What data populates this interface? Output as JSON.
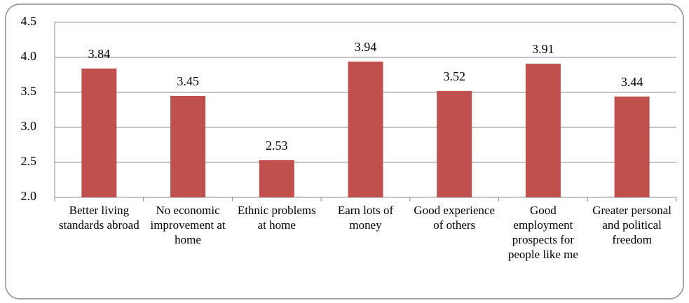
{
  "chart_data": {
    "type": "bar",
    "categories": [
      "Better living standards abroad",
      "No economic improvement at home",
      "Ethnic problems at home",
      "Earn lots of money",
      "Good experience of others",
      "Good employment prospects for people like me",
      "Greater personal and political freedom"
    ],
    "values": [
      3.84,
      3.45,
      2.53,
      3.94,
      3.52,
      3.91,
      3.44
    ],
    "color": "#c0504d",
    "ylim": [
      2.0,
      4.5
    ],
    "yticks": [
      {
        "value": 2.0,
        "label": "2.0"
      },
      2.5,
      {
        "value": 3.0,
        "label": "3.0"
      },
      3.5,
      {
        "value": 4.0,
        "label": "4.0"
      },
      4.5
    ],
    "grid": true
  }
}
